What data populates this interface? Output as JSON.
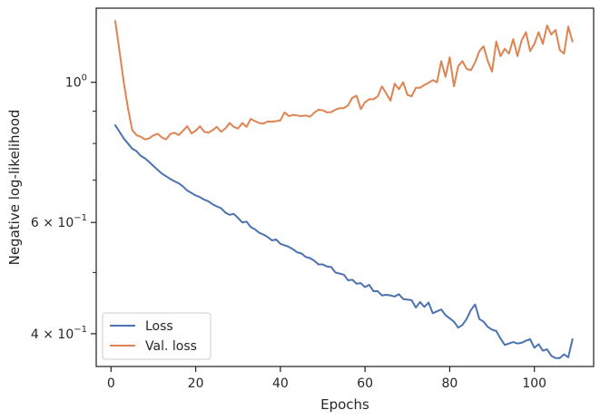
{
  "chart_data": {
    "type": "line",
    "xlabel": "Epochs",
    "ylabel": "Negative log-likelihood",
    "yscale": "log",
    "xlim": [
      -3.5,
      114
    ],
    "ylim": [
      0.355,
      1.31
    ],
    "grid": false,
    "legend_position": "lower-left",
    "x_ticks": [
      {
        "value": 0,
        "label": "0"
      },
      {
        "value": 20,
        "label": "20"
      },
      {
        "value": 40,
        "label": "40"
      },
      {
        "value": 60,
        "label": "60"
      },
      {
        "value": 80,
        "label": "80"
      },
      {
        "value": 100,
        "label": "100"
      }
    ],
    "y_major_ticks": [
      {
        "value": 1.0,
        "label_base": "10",
        "label_exp": "0",
        "label_coef": ""
      },
      {
        "value": 0.6,
        "label_base": "10",
        "label_exp": "−1",
        "label_coef": "6 × "
      },
      {
        "value": 0.4,
        "label_base": "10",
        "label_exp": "−1",
        "label_coef": "4 × "
      }
    ],
    "y_minor_ticks": [
      0.5,
      0.7,
      0.8,
      0.9
    ],
    "series": [
      {
        "name": "Loss",
        "color": "#4c72b0",
        "x": [
          1,
          2,
          3,
          4,
          5,
          6,
          7,
          8,
          9,
          10,
          11,
          12,
          13,
          14,
          15,
          16,
          17,
          18,
          19,
          20,
          21,
          22,
          23,
          24,
          25,
          26,
          27,
          28,
          29,
          30,
          31,
          32,
          33,
          34,
          35,
          36,
          37,
          38,
          39,
          40,
          41,
          42,
          43,
          44,
          45,
          46,
          47,
          48,
          49,
          50,
          51,
          52,
          53,
          54,
          55,
          56,
          57,
          58,
          59,
          60,
          61,
          62,
          63,
          64,
          65,
          66,
          67,
          68,
          69,
          70,
          71,
          72,
          73,
          74,
          75,
          76,
          77,
          78,
          79,
          80,
          81,
          82,
          83,
          84,
          85,
          86,
          87,
          88,
          89,
          90,
          91,
          92,
          93,
          94,
          95,
          96,
          97,
          98,
          99,
          100,
          101,
          102,
          103,
          104,
          105,
          106,
          107,
          108,
          109
        ],
        "values": [
          0.855,
          0.835,
          0.815,
          0.8,
          0.785,
          0.778,
          0.765,
          0.758,
          0.748,
          0.737,
          0.727,
          0.717,
          0.71,
          0.703,
          0.697,
          0.692,
          0.684,
          0.674,
          0.668,
          0.662,
          0.658,
          0.652,
          0.648,
          0.641,
          0.636,
          0.632,
          0.622,
          0.617,
          0.619,
          0.61,
          0.6,
          0.602,
          0.59,
          0.585,
          0.578,
          0.574,
          0.569,
          0.562,
          0.564,
          0.555,
          0.552,
          0.549,
          0.544,
          0.538,
          0.536,
          0.529,
          0.527,
          0.522,
          0.515,
          0.515,
          0.511,
          0.51,
          0.5,
          0.498,
          0.496,
          0.486,
          0.487,
          0.48,
          0.481,
          0.474,
          0.478,
          0.467,
          0.467,
          0.46,
          0.461,
          0.46,
          0.458,
          0.462,
          0.454,
          0.453,
          0.452,
          0.44,
          0.449,
          0.441,
          0.448,
          0.431,
          0.434,
          0.437,
          0.428,
          0.423,
          0.418,
          0.409,
          0.413,
          0.422,
          0.436,
          0.445,
          0.422,
          0.418,
          0.41,
          0.406,
          0.404,
          0.393,
          0.384,
          0.386,
          0.388,
          0.386,
          0.387,
          0.39,
          0.392,
          0.38,
          0.385,
          0.376,
          0.378,
          0.369,
          0.366,
          0.366,
          0.371,
          0.367,
          0.392
        ],
        "display_x": [
          1,
          2,
          3,
          4,
          5,
          6,
          7,
          8,
          9,
          10,
          11,
          12,
          13,
          14,
          15,
          16,
          17,
          18,
          19,
          20,
          21,
          22,
          23,
          24,
          25,
          26,
          27,
          28,
          29,
          30,
          31,
          32,
          33,
          34,
          35,
          36,
          37,
          38,
          39,
          40,
          41,
          42,
          43,
          44,
          45,
          46,
          47,
          48,
          49,
          50,
          51,
          52,
          53,
          54,
          55,
          56,
          57,
          58,
          59,
          60,
          61,
          62,
          63,
          64,
          65,
          66,
          67,
          68,
          69,
          70,
          71,
          72,
          73,
          74,
          75,
          76,
          77,
          78,
          79,
          80,
          81,
          82,
          83,
          84,
          85,
          86,
          87,
          88,
          89,
          90,
          91,
          92,
          93,
          94,
          95,
          96,
          97,
          98,
          99,
          100,
          101,
          102,
          103,
          104,
          105,
          106,
          107,
          108,
          109
        ]
      },
      {
        "name": "Val. loss",
        "color": "#dd8452",
        "x": [
          1,
          2,
          3,
          4,
          5,
          6,
          7,
          8,
          9,
          10,
          11,
          12,
          13,
          14,
          15,
          16,
          17,
          18,
          19,
          20,
          21,
          22,
          23,
          24,
          25,
          26,
          27,
          28,
          29,
          30,
          31,
          32,
          33,
          34,
          35,
          36,
          37,
          38,
          39,
          40,
          41,
          42,
          43,
          44,
          45,
          46,
          47,
          48,
          49,
          50,
          51,
          52,
          53,
          54,
          55,
          56,
          57,
          58,
          59,
          60,
          61,
          62,
          63,
          64,
          65,
          66,
          67,
          68,
          69,
          70,
          71,
          72,
          73,
          74,
          75,
          76,
          77,
          78,
          79,
          80,
          81,
          82,
          83,
          84,
          85,
          86,
          87,
          88,
          89,
          90,
          91,
          92,
          93,
          94,
          95,
          96,
          97,
          98,
          99,
          100,
          101,
          102,
          103,
          104,
          105,
          106,
          107,
          108,
          109
        ],
        "values": [
          1.25,
          1.12,
          1.0,
          0.91,
          0.84,
          0.825,
          0.82,
          0.812,
          0.815,
          0.824,
          0.829,
          0.818,
          0.812,
          0.828,
          0.832,
          0.825,
          0.838,
          0.852,
          0.83,
          0.838,
          0.852,
          0.835,
          0.832,
          0.84,
          0.85,
          0.835,
          0.845,
          0.862,
          0.85,
          0.845,
          0.862,
          0.85,
          0.875,
          0.868,
          0.862,
          0.86,
          0.867,
          0.866,
          0.868,
          0.87,
          0.896,
          0.884,
          0.888,
          0.886,
          0.884,
          0.886,
          0.882,
          0.895,
          0.905,
          0.903,
          0.896,
          0.897,
          0.905,
          0.91,
          0.91,
          0.92,
          0.945,
          0.952,
          0.907,
          0.93,
          0.94,
          0.94,
          0.95,
          0.985,
          0.96,
          0.935,
          0.995,
          0.975,
          1.0,
          0.955,
          0.95,
          0.98,
          0.98,
          0.99,
          0.998,
          1.008,
          1.0,
          1.08,
          1.02,
          1.095,
          0.985,
          1.06,
          1.08,
          1.05,
          1.045,
          1.075,
          1.12,
          1.14,
          1.08,
          1.04,
          1.16,
          1.1,
          1.13,
          1.11,
          1.17,
          1.1,
          1.165,
          1.2,
          1.12,
          1.15,
          1.2,
          1.15,
          1.23,
          1.19,
          1.21,
          1.125,
          1.11,
          1.225,
          1.16
        ]
      }
    ]
  }
}
